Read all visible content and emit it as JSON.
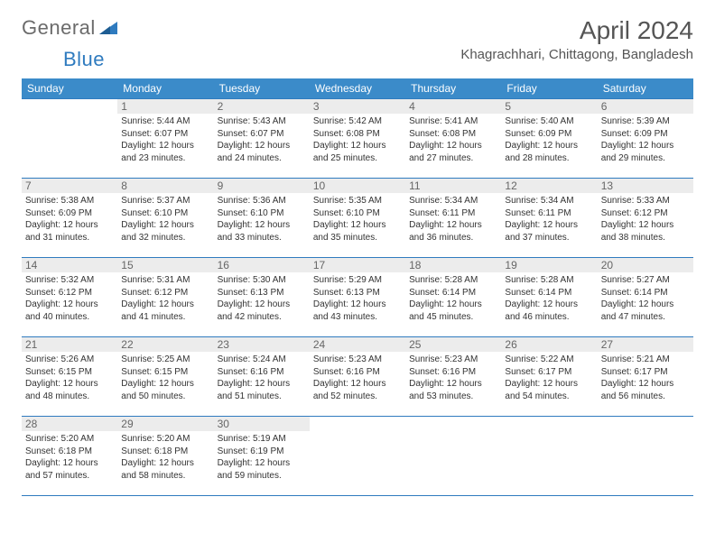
{
  "logo": {
    "text1": "General",
    "text2": "Blue"
  },
  "title": "April 2024",
  "location": "Khagrachhari, Chittagong, Bangladesh",
  "colors": {
    "header_bg": "#3b8bc9",
    "header_text": "#ffffff",
    "border": "#2f7bbf",
    "daynum_bg": "#ececec",
    "daynum_text": "#666666",
    "logo_gray": "#6b6b6b",
    "logo_blue": "#2f7bbf"
  },
  "weekdays": [
    "Sunday",
    "Monday",
    "Tuesday",
    "Wednesday",
    "Thursday",
    "Friday",
    "Saturday"
  ],
  "weeks": [
    [
      null,
      {
        "n": "1",
        "sunrise": "5:44 AM",
        "sunset": "6:07 PM",
        "daylight": "12 hours and 23 minutes."
      },
      {
        "n": "2",
        "sunrise": "5:43 AM",
        "sunset": "6:07 PM",
        "daylight": "12 hours and 24 minutes."
      },
      {
        "n": "3",
        "sunrise": "5:42 AM",
        "sunset": "6:08 PM",
        "daylight": "12 hours and 25 minutes."
      },
      {
        "n": "4",
        "sunrise": "5:41 AM",
        "sunset": "6:08 PM",
        "daylight": "12 hours and 27 minutes."
      },
      {
        "n": "5",
        "sunrise": "5:40 AM",
        "sunset": "6:09 PM",
        "daylight": "12 hours and 28 minutes."
      },
      {
        "n": "6",
        "sunrise": "5:39 AM",
        "sunset": "6:09 PM",
        "daylight": "12 hours and 29 minutes."
      }
    ],
    [
      {
        "n": "7",
        "sunrise": "5:38 AM",
        "sunset": "6:09 PM",
        "daylight": "12 hours and 31 minutes."
      },
      {
        "n": "8",
        "sunrise": "5:37 AM",
        "sunset": "6:10 PM",
        "daylight": "12 hours and 32 minutes."
      },
      {
        "n": "9",
        "sunrise": "5:36 AM",
        "sunset": "6:10 PM",
        "daylight": "12 hours and 33 minutes."
      },
      {
        "n": "10",
        "sunrise": "5:35 AM",
        "sunset": "6:10 PM",
        "daylight": "12 hours and 35 minutes."
      },
      {
        "n": "11",
        "sunrise": "5:34 AM",
        "sunset": "6:11 PM",
        "daylight": "12 hours and 36 minutes."
      },
      {
        "n": "12",
        "sunrise": "5:34 AM",
        "sunset": "6:11 PM",
        "daylight": "12 hours and 37 minutes."
      },
      {
        "n": "13",
        "sunrise": "5:33 AM",
        "sunset": "6:12 PM",
        "daylight": "12 hours and 38 minutes."
      }
    ],
    [
      {
        "n": "14",
        "sunrise": "5:32 AM",
        "sunset": "6:12 PM",
        "daylight": "12 hours and 40 minutes."
      },
      {
        "n": "15",
        "sunrise": "5:31 AM",
        "sunset": "6:12 PM",
        "daylight": "12 hours and 41 minutes."
      },
      {
        "n": "16",
        "sunrise": "5:30 AM",
        "sunset": "6:13 PM",
        "daylight": "12 hours and 42 minutes."
      },
      {
        "n": "17",
        "sunrise": "5:29 AM",
        "sunset": "6:13 PM",
        "daylight": "12 hours and 43 minutes."
      },
      {
        "n": "18",
        "sunrise": "5:28 AM",
        "sunset": "6:14 PM",
        "daylight": "12 hours and 45 minutes."
      },
      {
        "n": "19",
        "sunrise": "5:28 AM",
        "sunset": "6:14 PM",
        "daylight": "12 hours and 46 minutes."
      },
      {
        "n": "20",
        "sunrise": "5:27 AM",
        "sunset": "6:14 PM",
        "daylight": "12 hours and 47 minutes."
      }
    ],
    [
      {
        "n": "21",
        "sunrise": "5:26 AM",
        "sunset": "6:15 PM",
        "daylight": "12 hours and 48 minutes."
      },
      {
        "n": "22",
        "sunrise": "5:25 AM",
        "sunset": "6:15 PM",
        "daylight": "12 hours and 50 minutes."
      },
      {
        "n": "23",
        "sunrise": "5:24 AM",
        "sunset": "6:16 PM",
        "daylight": "12 hours and 51 minutes."
      },
      {
        "n": "24",
        "sunrise": "5:23 AM",
        "sunset": "6:16 PM",
        "daylight": "12 hours and 52 minutes."
      },
      {
        "n": "25",
        "sunrise": "5:23 AM",
        "sunset": "6:16 PM",
        "daylight": "12 hours and 53 minutes."
      },
      {
        "n": "26",
        "sunrise": "5:22 AM",
        "sunset": "6:17 PM",
        "daylight": "12 hours and 54 minutes."
      },
      {
        "n": "27",
        "sunrise": "5:21 AM",
        "sunset": "6:17 PM",
        "daylight": "12 hours and 56 minutes."
      }
    ],
    [
      {
        "n": "28",
        "sunrise": "5:20 AM",
        "sunset": "6:18 PM",
        "daylight": "12 hours and 57 minutes."
      },
      {
        "n": "29",
        "sunrise": "5:20 AM",
        "sunset": "6:18 PM",
        "daylight": "12 hours and 58 minutes."
      },
      {
        "n": "30",
        "sunrise": "5:19 AM",
        "sunset": "6:19 PM",
        "daylight": "12 hours and 59 minutes."
      },
      null,
      null,
      null,
      null
    ]
  ]
}
